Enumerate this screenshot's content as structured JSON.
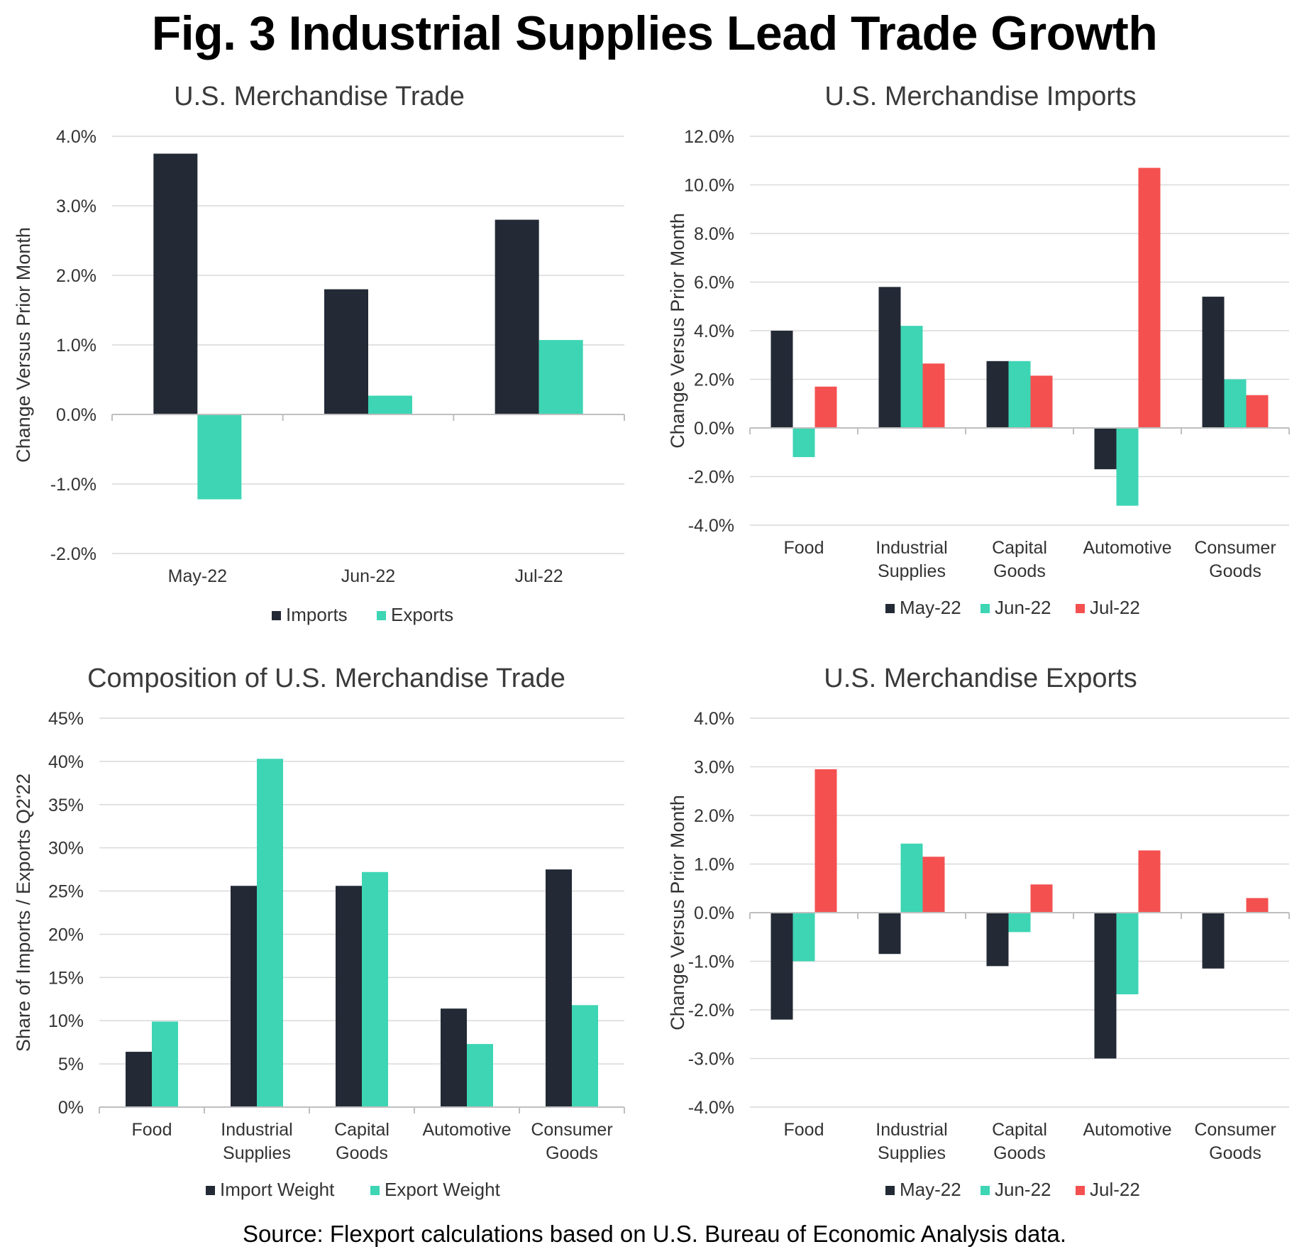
{
  "title": "Fig. 3 Industrial Supplies Lead Trade Growth",
  "source": "Source: Flexport calculations based on U.S. Bureau of Economic Analysis data.",
  "colors": {
    "dark": "#232a36",
    "teal": "#3dd5b4",
    "red": "#f45050",
    "grid": "#d9d9d9",
    "axis": "#bfbfbf"
  },
  "chart_data": [
    {
      "id": "trade",
      "type": "bar",
      "title": "U.S. Merchandise Trade",
      "ylabel": "Change Versus Prior Month",
      "xlabel": "",
      "ylim": [
        -2.0,
        4.0
      ],
      "yticks": [
        -2.0,
        -1.0,
        0.0,
        1.0,
        2.0,
        3.0,
        4.0
      ],
      "ytick_labels": [
        "-2.0%",
        "-1.0%",
        "0.0%",
        "1.0%",
        "2.0%",
        "3.0%",
        "4.0%"
      ],
      "categories": [
        [
          "May-22"
        ],
        [
          "Jun-22"
        ],
        [
          "Jul-22"
        ]
      ],
      "series": [
        {
          "name": "Imports",
          "color": "#232a36",
          "values": [
            3.75,
            1.8,
            2.8
          ]
        },
        {
          "name": "Exports",
          "color": "#3dd5b4",
          "values": [
            -1.22,
            0.27,
            1.07
          ]
        }
      ],
      "legend": "bottom-center",
      "grid": true
    },
    {
      "id": "imports",
      "type": "bar",
      "title": "U.S. Merchandise Imports",
      "ylabel": "Change Versus Prior Month",
      "xlabel": "",
      "ylim": [
        -4.0,
        12.0
      ],
      "yticks": [
        -4.0,
        -2.0,
        0.0,
        2.0,
        4.0,
        6.0,
        8.0,
        10.0,
        12.0
      ],
      "ytick_labels": [
        "-4.0%",
        "-2.0%",
        "0.0%",
        "2.0%",
        "4.0%",
        "6.0%",
        "8.0%",
        "10.0%",
        "12.0%"
      ],
      "categories": [
        [
          "Food"
        ],
        [
          "Industrial",
          "Supplies"
        ],
        [
          "Capital",
          "Goods"
        ],
        [
          "Automotive"
        ],
        [
          "Consumer",
          "Goods"
        ]
      ],
      "series": [
        {
          "name": "May-22",
          "color": "#232a36",
          "values": [
            4.0,
            5.8,
            2.75,
            -1.7,
            5.4
          ]
        },
        {
          "name": "Jun-22",
          "color": "#3dd5b4",
          "values": [
            -1.2,
            4.2,
            2.75,
            -3.2,
            2.0
          ]
        },
        {
          "name": "Jul-22",
          "color": "#f45050",
          "values": [
            1.7,
            2.65,
            2.15,
            10.7,
            1.35
          ]
        }
      ],
      "legend": "bottom-center",
      "grid": true
    },
    {
      "id": "composition",
      "type": "bar",
      "title": "Composition of U.S. Merchandise Trade",
      "ylabel": "Share of Imports / Exports Q2'22",
      "xlabel": "",
      "ylim": [
        0,
        45
      ],
      "yticks": [
        0,
        5,
        10,
        15,
        20,
        25,
        30,
        35,
        40,
        45
      ],
      "ytick_labels": [
        "0%",
        "5%",
        "10%",
        "15%",
        "20%",
        "25%",
        "30%",
        "35%",
        "40%",
        "45%"
      ],
      "categories": [
        [
          "Food"
        ],
        [
          "Industrial",
          "Supplies"
        ],
        [
          "Capital",
          "Goods"
        ],
        [
          "Automotive"
        ],
        [
          "Consumer",
          "Goods"
        ]
      ],
      "series": [
        {
          "name": "Import Weight",
          "color": "#232a36",
          "values": [
            6.4,
            25.6,
            25.6,
            11.4,
            27.5
          ]
        },
        {
          "name": "Export Weight",
          "color": "#3dd5b4",
          "values": [
            9.9,
            40.3,
            27.2,
            7.3,
            11.8
          ]
        }
      ],
      "legend": "bottom-center",
      "grid": true
    },
    {
      "id": "exports",
      "type": "bar",
      "title": "U.S. Merchandise Exports",
      "ylabel": "Change Versus Prior Month",
      "xlabel": "",
      "ylim": [
        -4.0,
        4.0
      ],
      "yticks": [
        -4.0,
        -3.0,
        -2.0,
        -1.0,
        0.0,
        1.0,
        2.0,
        3.0,
        4.0
      ],
      "ytick_labels": [
        "-4.0%",
        "-3.0%",
        "-2.0%",
        "-1.0%",
        "0.0%",
        "1.0%",
        "2.0%",
        "3.0%",
        "4.0%"
      ],
      "categories": [
        [
          "Food"
        ],
        [
          "Industrial",
          "Supplies"
        ],
        [
          "Capital",
          "Goods"
        ],
        [
          "Automotive"
        ],
        [
          "Consumer",
          "Goods"
        ]
      ],
      "series": [
        {
          "name": "May-22",
          "color": "#232a36",
          "values": [
            -2.2,
            -0.85,
            -1.1,
            -3.0,
            -1.15
          ]
        },
        {
          "name": "Jun-22",
          "color": "#3dd5b4",
          "values": [
            -1.0,
            1.42,
            -0.4,
            -1.68,
            0.0
          ]
        },
        {
          "name": "Jul-22",
          "color": "#f45050",
          "values": [
            2.95,
            1.15,
            0.58,
            1.28,
            0.3
          ]
        }
      ],
      "legend": "bottom-center",
      "grid": true
    }
  ]
}
